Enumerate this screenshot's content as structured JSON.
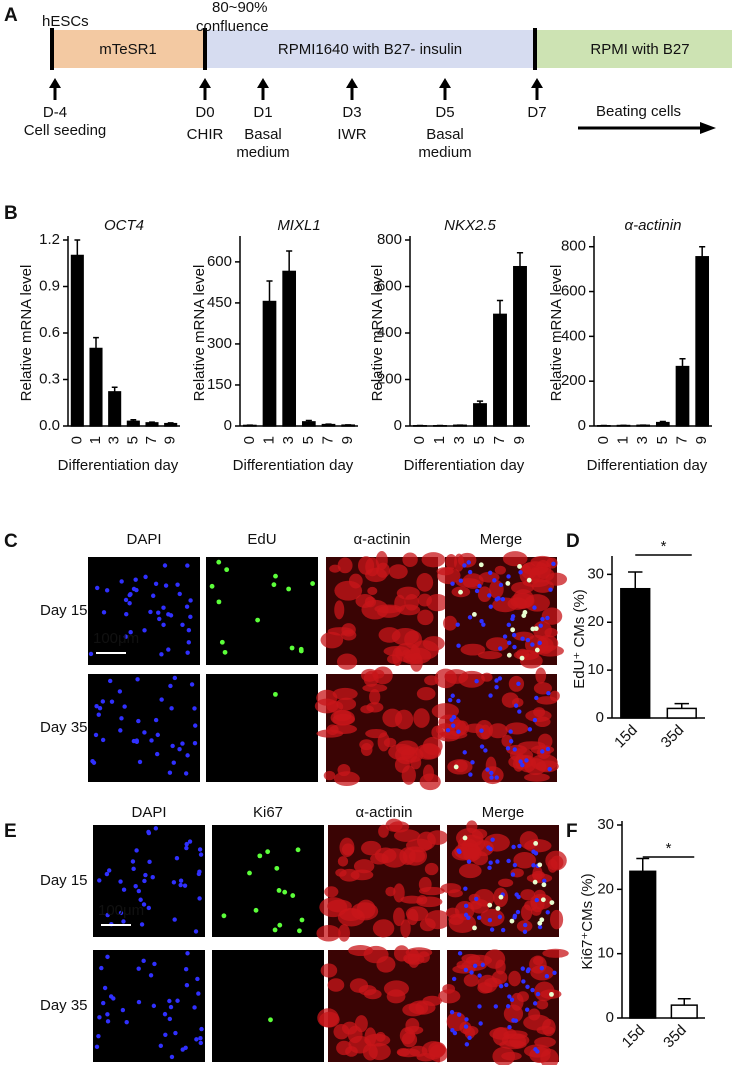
{
  "panel_labels": [
    "A",
    "B",
    "C",
    "D",
    "E",
    "F"
  ],
  "timeline": {
    "top_labels": [
      "hESCs",
      "80~90%",
      "confluence"
    ],
    "stages": [
      "mTeSR1",
      "RPMI1640 with B27- insulin",
      "RPMI with B27"
    ],
    "markers": [
      {
        "day": "D-4",
        "notes": [
          "Cell seeding"
        ]
      },
      {
        "day": "D0",
        "notes": [
          "CHIR"
        ]
      },
      {
        "day": "D1",
        "notes": [
          "Basal",
          "medium"
        ]
      },
      {
        "day": "D3",
        "notes": [
          "IWR"
        ]
      },
      {
        "day": "D5",
        "notes": [
          "Basal",
          "medium"
        ]
      },
      {
        "day": "D7"
      }
    ],
    "beating": "Beating cells"
  },
  "panel_c": {
    "columns": [
      "DAPI",
      "EdU",
      "α-actinin",
      "Merge"
    ],
    "rows": [
      "Day 15",
      "Day 35"
    ],
    "scale_bar": "100μm"
  },
  "panel_e": {
    "columns": [
      "DAPI",
      "Ki67",
      "α-actinin",
      "Merge"
    ],
    "rows": [
      "Day 15",
      "Day 35"
    ],
    "scale_bar": "100μm"
  },
  "chart_data": [
    {
      "type": "bar",
      "title": "OCT4",
      "categories": [
        "0",
        "1",
        "3",
        "5",
        "7",
        "9"
      ],
      "values": [
        1.1,
        0.5,
        0.22,
        0.03,
        0.02,
        0.015
      ],
      "errors": [
        0.1,
        0.07,
        0.03,
        0.01,
        0.005,
        0.005
      ],
      "ylim": [
        0,
        1.2
      ],
      "yticks": [
        {
          "value": 0,
          "label": "0.0"
        },
        0.3,
        0.6,
        0.9,
        1.2
      ],
      "xlabel": "Differentiation day",
      "ylabel": "Relative mRNA level",
      "color": "#000000"
    },
    {
      "type": "bar",
      "title": "MIXL1",
      "categories": [
        "0",
        "1",
        "3",
        "5",
        "7",
        "9"
      ],
      "values": [
        2,
        455,
        565,
        15,
        5,
        3
      ],
      "errors": [
        1,
        75,
        75,
        5,
        2,
        1
      ],
      "ylim": [
        0,
        680
      ],
      "yticks": [
        0,
        150,
        300,
        450,
        600
      ],
      "xlabel": "Differentiation day",
      "ylabel": "Relative mRNA level",
      "color": "#000000"
    },
    {
      "type": "bar",
      "title": "NKX2.5",
      "categories": [
        "0",
        "1",
        "3",
        "5",
        "7",
        "9"
      ],
      "values": [
        1,
        1,
        3,
        95,
        480,
        685
      ],
      "errors": [
        1,
        1,
        1,
        12,
        60,
        60
      ],
      "ylim": [
        0,
        800
      ],
      "yticks": [
        0,
        200,
        400,
        600,
        800
      ],
      "xlabel": "Differentiation day",
      "ylabel": "Relative mRNA level",
      "color": "#000000"
    },
    {
      "type": "bar",
      "title": "α-actinin",
      "categories": [
        "0",
        "1",
        "3",
        "5",
        "7",
        "9"
      ],
      "values": [
        1,
        2,
        3,
        15,
        265,
        755
      ],
      "errors": [
        1,
        1,
        1,
        5,
        35,
        45
      ],
      "ylim": [
        0,
        830
      ],
      "yticks": [
        0,
        200,
        400,
        600,
        800
      ],
      "xlabel": "Differentiation day",
      "ylabel": "Relative mRNA level",
      "color": "#000000"
    },
    {
      "type": "bar",
      "categories": [
        "15d",
        "35d"
      ],
      "values": [
        27,
        2
      ],
      "errors": [
        3.5,
        1
      ],
      "ylim": [
        0,
        33
      ],
      "yticks": [
        0,
        10,
        20,
        30
      ],
      "ylabel": "EdU⁺ CMs (%)",
      "colors": [
        "#000000",
        "#ffffff"
      ],
      "significance": "*"
    },
    {
      "type": "bar",
      "categories": [
        "15d",
        "35d"
      ],
      "values": [
        22.8,
        2
      ],
      "errors": [
        2,
        1
      ],
      "ylim": [
        0,
        30
      ],
      "yticks": [
        0,
        10,
        20,
        30
      ],
      "ylabel": "Ki67⁺CMs (%)",
      "colors": [
        "#000000",
        "#ffffff"
      ],
      "significance": "*"
    }
  ]
}
